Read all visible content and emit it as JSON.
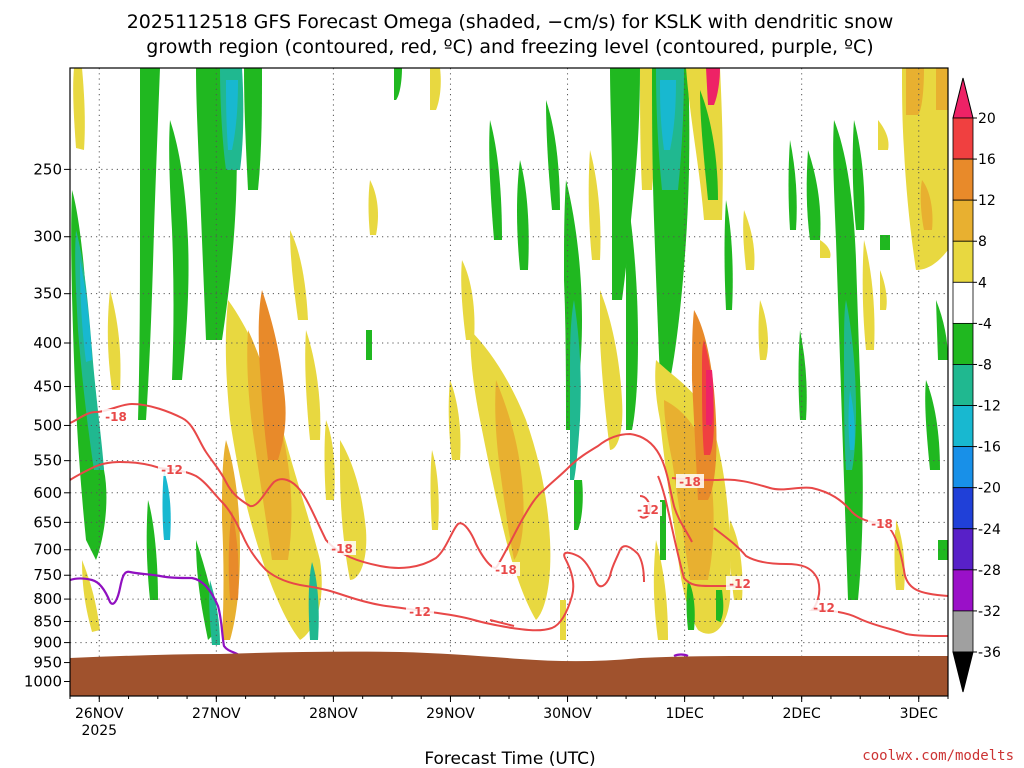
{
  "chart_data": {
    "type": "heatmap",
    "title_line1": "2025112518 GFS Forecast Omega (shaded, −cm/s) for KSLK with dendritic snow",
    "title_line2": "growth region (contoured, red, ºC) and freezing level (contoured, purple, ºC)",
    "xlabel": "Forecast Time (UTC)",
    "credit": "coolwx.com/modelts",
    "x_ticks": [
      {
        "label": "26NOV",
        "sub": "2025",
        "hour": 6
      },
      {
        "label": "27NOV",
        "hour": 30
      },
      {
        "label": "28NOV",
        "hour": 54
      },
      {
        "label": "29NOV",
        "hour": 78
      },
      {
        "label": "30NOV",
        "hour": 102
      },
      {
        "label": "1DEC",
        "hour": 126
      },
      {
        "label": "2DEC",
        "hour": 150
      },
      {
        "label": "3DEC",
        "hour": 174
      }
    ],
    "x_range_hours": [
      0,
      180
    ],
    "y_ticks": [
      "250",
      "300",
      "350",
      "400",
      "450",
      "500",
      "550",
      "600",
      "650",
      "700",
      "750",
      "800",
      "850",
      "900",
      "950",
      "1000"
    ],
    "y_range_hpa": [
      190,
      1040
    ],
    "grid": true,
    "colorbar": {
      "levels": [
        20,
        16,
        12,
        8,
        4,
        -4,
        -8,
        -12,
        -16,
        -20,
        -24,
        -28,
        -32,
        -36
      ],
      "colors": [
        "#ee2266",
        "#f04040",
        "#e88a2a",
        "#e8b030",
        "#e8d840",
        "#ffffff",
        "#20b820",
        "#20b890",
        "#18b8d0",
        "#1890e8",
        "#2040d8",
        "#5820c8",
        "#9a10c8",
        "#a0a0a0",
        "#000000"
      ]
    },
    "contours": [
      {
        "label": "-18",
        "color": "#e84848"
      },
      {
        "label": "-12",
        "color": "#e84848"
      }
    ],
    "freezing_level_color": "#9010c0",
    "terrain_color": "#a0522d"
  }
}
